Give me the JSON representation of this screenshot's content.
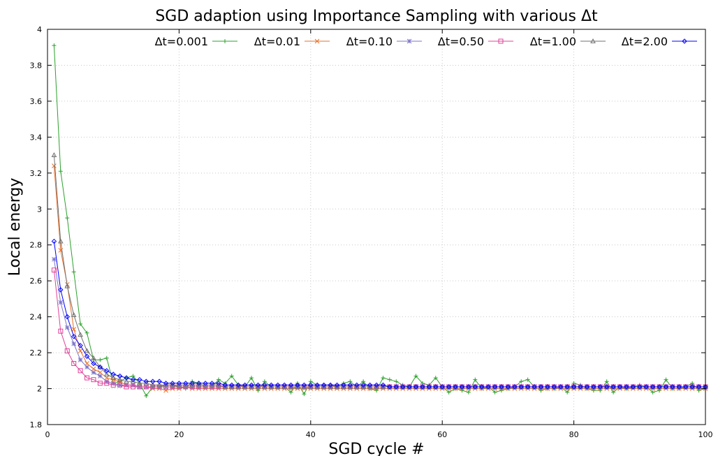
{
  "chart_data": {
    "type": "line",
    "title": "SGD adaption using Importance Sampling with various  Δt",
    "xlabel": "SGD cycle #",
    "ylabel": "Local energy",
    "xlim": [
      0,
      100
    ],
    "ylim": [
      1.8,
      4.0
    ],
    "xticks": [
      "0",
      "20",
      "40",
      "60",
      "80",
      "100"
    ],
    "yticks": [
      "1.8",
      "2",
      "2.2",
      "2.4",
      "2.6",
      "2.8",
      "3",
      "3.2",
      "3.4",
      "3.6",
      "3.8",
      "4"
    ],
    "grid": true,
    "legend_position": "top-right",
    "x": [
      1,
      2,
      3,
      4,
      5,
      6,
      7,
      8,
      9,
      10,
      11,
      12,
      13,
      14,
      15,
      16,
      17,
      18,
      19,
      20,
      21,
      22,
      23,
      24,
      25,
      26,
      27,
      28,
      29,
      30,
      31,
      32,
      33,
      34,
      35,
      36,
      37,
      38,
      39,
      40,
      41,
      42,
      43,
      44,
      45,
      46,
      47,
      48,
      49,
      50,
      51,
      52,
      53,
      54,
      55,
      56,
      57,
      58,
      59,
      60,
      61,
      62,
      63,
      64,
      65,
      66,
      67,
      68,
      69,
      70,
      71,
      72,
      73,
      74,
      75,
      76,
      77,
      78,
      79,
      80,
      81,
      82,
      83,
      84,
      85,
      86,
      87,
      88,
      89,
      90,
      91,
      92,
      93,
      94,
      95,
      96,
      97,
      98,
      99,
      100
    ],
    "series": [
      {
        "name": "Δt=0.001",
        "color": "#2ca02c",
        "marker": "plus",
        "values": [
          3.91,
          3.21,
          2.95,
          2.65,
          2.36,
          2.31,
          2.16,
          2.16,
          2.17,
          2.03,
          2.04,
          2.06,
          2.07,
          2.03,
          1.96,
          2.01,
          2.01,
          2.02,
          2.02,
          2.01,
          2.0,
          2.04,
          2.03,
          2.01,
          2.01,
          2.05,
          2.03,
          2.07,
          2.02,
          2.01,
          2.06,
          1.99,
          2.04,
          2.01,
          2.01,
          2.01,
          1.98,
          2.03,
          1.97,
          2.04,
          2.02,
          2.02,
          2.02,
          2.01,
          2.03,
          2.04,
          2.01,
          2.04,
          2.0,
          1.99,
          2.06,
          2.05,
          2.04,
          2.02,
          2.01,
          2.07,
          2.03,
          2.02,
          2.06,
          2.01,
          1.98,
          2.0,
          1.99,
          1.98,
          2.05,
          2.0,
          2.01,
          1.98,
          1.99,
          2.0,
          2.01,
          2.04,
          2.05,
          2.01,
          1.99,
          2.0,
          2.0,
          2.01,
          1.98,
          2.03,
          2.02,
          2.0,
          1.99,
          1.99,
          2.04,
          1.98,
          2.01,
          2.0,
          2.01,
          2.02,
          2.01,
          1.98,
          1.99,
          2.05,
          2.0,
          2.0,
          2.01,
          2.03,
          1.99,
          2.0
        ]
      },
      {
        "name": "Δt=0.01",
        "color": "#e8702a",
        "marker": "cross",
        "values": [
          3.24,
          2.77,
          2.58,
          2.33,
          2.21,
          2.14,
          2.11,
          2.09,
          2.06,
          2.05,
          2.04,
          2.02,
          2.02,
          2.01,
          2.01,
          2.0,
          2.0,
          1.99,
          2.0,
          2.0,
          2.01,
          2.0,
          2.0,
          2.0,
          2.0,
          2.0,
          2.0,
          2.0,
          2.0,
          2.0,
          2.0,
          2.0,
          2.0,
          2.0,
          2.0,
          2.0,
          2.0,
          2.0,
          2.0,
          2.0,
          2.0,
          2.0,
          2.0,
          2.0,
          2.0,
          2.0,
          2.0,
          2.0,
          2.0,
          2.0,
          2.0,
          2.0,
          2.0,
          2.0,
          2.0,
          2.0,
          2.0,
          2.0,
          2.0,
          2.0,
          2.0,
          2.0,
          2.0,
          2.0,
          2.0,
          2.0,
          2.0,
          2.0,
          2.0,
          2.0,
          2.0,
          2.0,
          2.0,
          2.0,
          2.0,
          2.0,
          2.0,
          2.0,
          2.0,
          2.0,
          2.0,
          2.0,
          2.0,
          2.0,
          2.0,
          2.0,
          2.0,
          2.0,
          2.0,
          2.0,
          2.0,
          2.0,
          2.0,
          2.0,
          2.0,
          2.0,
          2.0,
          2.0,
          2.0,
          2.0
        ]
      },
      {
        "name": "Δt=0.10",
        "color": "#7b74c9",
        "marker": "star",
        "values": [
          2.72,
          2.48,
          2.34,
          2.25,
          2.16,
          2.12,
          2.09,
          2.07,
          2.04,
          2.03,
          2.02,
          2.02,
          2.02,
          2.01,
          2.01,
          2.01,
          2.01,
          2.01,
          2.01,
          2.01,
          2.01,
          2.01,
          2.01,
          2.01,
          2.01,
          2.01,
          2.01,
          2.01,
          2.01,
          2.01,
          2.01,
          2.01,
          2.01,
          2.01,
          2.01,
          2.01,
          2.01,
          2.01,
          2.01,
          2.01,
          2.01,
          2.01,
          2.01,
          2.01,
          2.01,
          2.01,
          2.01,
          2.01,
          2.01,
          2.01,
          2.01,
          2.01,
          2.01,
          2.01,
          2.01,
          2.01,
          2.01,
          2.01,
          2.01,
          2.01,
          2.01,
          2.01,
          2.01,
          2.01,
          2.01,
          2.01,
          2.01,
          2.01,
          2.01,
          2.01,
          2.01,
          2.01,
          2.01,
          2.01,
          2.01,
          2.01,
          2.01,
          2.01,
          2.01,
          2.01,
          2.01,
          2.01,
          2.01,
          2.01,
          2.01,
          2.01,
          2.01,
          2.01,
          2.01,
          2.01,
          2.01,
          2.01,
          2.01,
          2.01,
          2.01,
          2.01,
          2.01,
          2.01,
          2.01,
          2.01
        ]
      },
      {
        "name": "Δt=0.50",
        "color": "#e0409a",
        "marker": "square",
        "values": [
          2.66,
          2.32,
          2.21,
          2.14,
          2.1,
          2.06,
          2.05,
          2.03,
          2.03,
          2.02,
          2.02,
          2.01,
          2.01,
          2.01,
          2.01,
          2.01,
          2.01,
          2.01,
          2.01,
          2.01,
          2.01,
          2.01,
          2.01,
          2.01,
          2.01,
          2.01,
          2.01,
          2.01,
          2.01,
          2.01,
          2.01,
          2.01,
          2.01,
          2.01,
          2.01,
          2.01,
          2.01,
          2.01,
          2.01,
          2.01,
          2.01,
          2.01,
          2.01,
          2.01,
          2.01,
          2.01,
          2.01,
          2.01,
          2.01,
          2.01,
          2.01,
          2.01,
          2.01,
          2.01,
          2.01,
          2.01,
          2.01,
          2.01,
          2.01,
          2.01,
          2.01,
          2.01,
          2.01,
          2.01,
          2.01,
          2.01,
          2.01,
          2.01,
          2.01,
          2.01,
          2.01,
          2.01,
          2.01,
          2.01,
          2.01,
          2.01,
          2.01,
          2.01,
          2.01,
          2.01,
          2.01,
          2.01,
          2.01,
          2.01,
          2.01,
          2.01,
          2.01,
          2.01,
          2.01,
          2.01,
          2.01,
          2.01,
          2.01,
          2.01,
          2.01,
          2.01,
          2.01,
          2.01,
          2.01,
          2.01
        ]
      },
      {
        "name": "Δt=1.00",
        "color": "#707070",
        "marker": "triangle",
        "values": [
          3.3,
          2.82,
          2.57,
          2.41,
          2.3,
          2.21,
          2.17,
          2.12,
          2.08,
          2.06,
          2.05,
          2.04,
          2.04,
          2.03,
          2.03,
          2.02,
          2.02,
          2.02,
          2.02,
          2.02,
          2.02,
          2.02,
          2.02,
          2.02,
          2.02,
          2.02,
          2.01,
          2.01,
          2.01,
          2.01,
          2.01,
          2.01,
          2.01,
          2.01,
          2.01,
          2.01,
          2.01,
          2.01,
          2.01,
          2.01,
          2.01,
          2.01,
          2.01,
          2.01,
          2.01,
          2.01,
          2.01,
          2.01,
          2.01,
          2.01,
          2.01,
          2.01,
          2.01,
          2.01,
          2.01,
          2.01,
          2.01,
          2.01,
          2.01,
          2.01,
          2.01,
          2.01,
          2.01,
          2.01,
          2.01,
          2.01,
          2.01,
          2.01,
          2.01,
          2.01,
          2.01,
          2.01,
          2.01,
          2.01,
          2.01,
          2.01,
          2.01,
          2.01,
          2.01,
          2.01,
          2.01,
          2.01,
          2.01,
          2.01,
          2.01,
          2.01,
          2.01,
          2.01,
          2.01,
          2.01,
          2.01,
          2.01,
          2.01,
          2.01,
          2.01,
          2.01,
          2.01,
          2.01,
          2.01,
          2.01
        ]
      },
      {
        "name": "Δt=2.00",
        "color": "#0000ff",
        "marker": "diamond",
        "values": [
          2.82,
          2.55,
          2.4,
          2.29,
          2.24,
          2.18,
          2.14,
          2.12,
          2.1,
          2.08,
          2.07,
          2.06,
          2.05,
          2.05,
          2.04,
          2.04,
          2.04,
          2.03,
          2.03,
          2.03,
          2.03,
          2.03,
          2.03,
          2.03,
          2.03,
          2.03,
          2.02,
          2.02,
          2.02,
          2.02,
          2.02,
          2.02,
          2.02,
          2.02,
          2.02,
          2.02,
          2.02,
          2.02,
          2.02,
          2.02,
          2.02,
          2.02,
          2.02,
          2.02,
          2.02,
          2.02,
          2.02,
          2.02,
          2.02,
          2.02,
          2.02,
          2.01,
          2.01,
          2.01,
          2.01,
          2.01,
          2.01,
          2.01,
          2.01,
          2.01,
          2.01,
          2.01,
          2.01,
          2.01,
          2.01,
          2.01,
          2.01,
          2.01,
          2.01,
          2.01,
          2.01,
          2.01,
          2.01,
          2.01,
          2.01,
          2.01,
          2.01,
          2.01,
          2.01,
          2.01,
          2.01,
          2.01,
          2.01,
          2.01,
          2.01,
          2.01,
          2.01,
          2.01,
          2.01,
          2.01,
          2.01,
          2.01,
          2.01,
          2.01,
          2.01,
          2.01,
          2.01,
          2.01,
          2.01,
          2.01
        ]
      }
    ]
  }
}
